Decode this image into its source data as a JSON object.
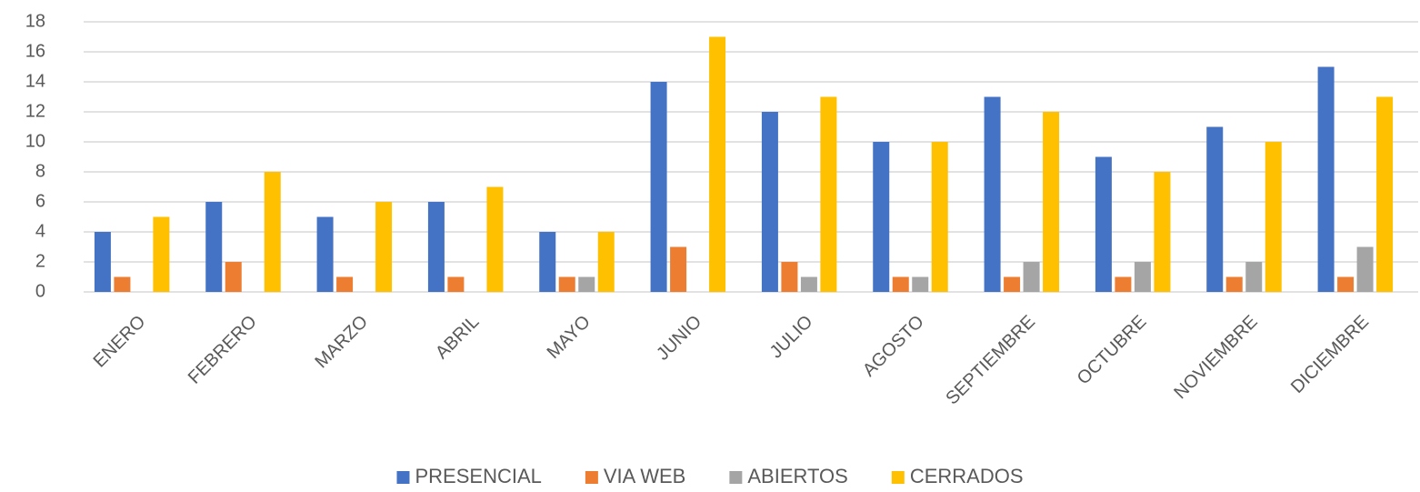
{
  "chart_data": {
    "type": "bar",
    "categories": [
      "ENERO",
      "FEBRERO",
      "MARZO",
      "ABRIL",
      "MAYO",
      "JUNIO",
      "JULIO",
      "AGOSTO",
      "SEPTIEMBRE",
      "OCTUBRE",
      "NOVIEMBRE",
      "DICIEMBRE"
    ],
    "series": [
      {
        "name": "PRESENCIAL",
        "color": "#4472c4",
        "values": [
          4,
          6,
          5,
          6,
          4,
          14,
          12,
          10,
          13,
          9,
          11,
          15
        ]
      },
      {
        "name": "VIA WEB",
        "color": "#ed7d31",
        "values": [
          1,
          2,
          1,
          1,
          1,
          3,
          2,
          1,
          1,
          1,
          1,
          1
        ]
      },
      {
        "name": "ABIERTOS",
        "color": "#a5a5a5",
        "values": [
          0,
          0,
          0,
          0,
          1,
          0,
          1,
          1,
          2,
          2,
          2,
          3
        ]
      },
      {
        "name": "CERRADOS",
        "color": "#ffc000",
        "values": [
          5,
          8,
          6,
          7,
          4,
          17,
          13,
          10,
          12,
          8,
          10,
          13
        ]
      }
    ],
    "ylim": [
      0,
      18
    ],
    "yticks": [
      0,
      2,
      4,
      6,
      8,
      10,
      12,
      14,
      16,
      18
    ],
    "grid": true,
    "legend": "bottom"
  }
}
